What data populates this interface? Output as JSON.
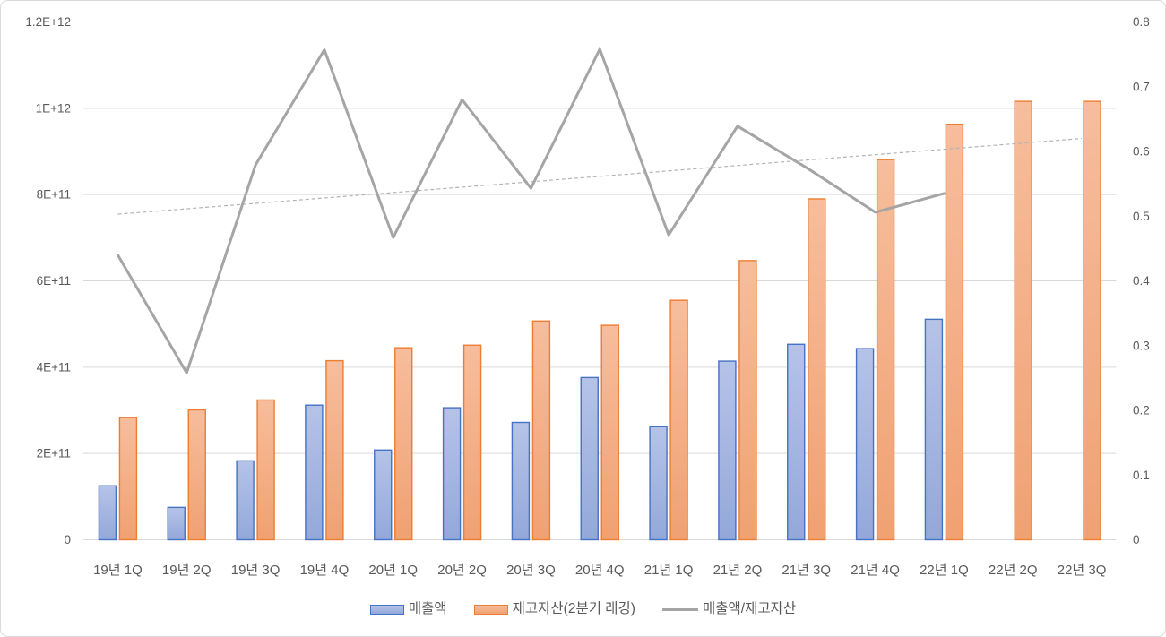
{
  "chart_data": {
    "type": "bar",
    "subtype": "dual-axis bar + line combo",
    "title": "",
    "categories": [
      "19년 1Q",
      "19년 2Q",
      "19년 3Q",
      "19년 4Q",
      "20년 1Q",
      "20년 2Q",
      "20년 3Q",
      "20년 4Q",
      "21년 1Q",
      "21년 2Q",
      "21년 3Q",
      "21년 4Q",
      "22년 1Q",
      "22년 2Q",
      "22년 3Q"
    ],
    "series": [
      {
        "name": "매출액",
        "type": "bar",
        "axis": "left",
        "values": [
          125000000000,
          75000000000,
          183000000000,
          312000000000,
          208000000000,
          306000000000,
          272000000000,
          376000000000,
          262000000000,
          414000000000,
          453000000000,
          443000000000,
          511000000000,
          null,
          null
        ]
      },
      {
        "name": "재고자산(2분기 래깅)",
        "type": "bar",
        "axis": "left",
        "values": [
          283000000000,
          301000000000,
          324000000000,
          415000000000,
          445000000000,
          451000000000,
          507000000000,
          497000000000,
          555000000000,
          647000000000,
          790000000000,
          881000000000,
          963000000000,
          1016000000000,
          1016000000000
        ]
      },
      {
        "name": "매출액/재고자산",
        "type": "line",
        "axis": "right",
        "values": [
          0.44,
          0.258,
          0.579,
          0.757,
          0.467,
          0.68,
          0.543,
          0.758,
          0.471,
          0.639,
          0.575,
          0.506,
          0.535,
          null,
          null
        ]
      }
    ],
    "trendline": {
      "applies_to": "매출액/재고자산",
      "style": "dashed",
      "start_value": 0.503,
      "end_value": 0.62
    },
    "left_axis": {
      "min": 0,
      "max": 1200000000000,
      "tick_step": 200000000000,
      "tick_labels": [
        "0",
        "2E+11",
        "4E+11",
        "6E+11",
        "8E+11",
        "1E+12",
        "1.2E+12"
      ]
    },
    "right_axis": {
      "min": 0,
      "max": 0.8,
      "tick_step": 0.1,
      "tick_labels": [
        "0",
        "0.1",
        "0.2",
        "0.3",
        "0.4",
        "0.5",
        "0.6",
        "0.7",
        "0.8"
      ]
    },
    "grid": true,
    "legend_position": "bottom",
    "colors": {
      "blue_border": "#4472C4",
      "blue_fill_top": "#b5c3e8",
      "blue_fill_bottom": "#93a8da",
      "orange_border": "#ED7D31",
      "orange_fill_top": "#f7bd9c",
      "orange_fill_bottom": "#f0a172",
      "ratio_line": "#A5A5A5",
      "trendline": "#b3b3b3",
      "gridline": "#D9D9D9",
      "axis_text": "#595959",
      "chart_border": "#D9D9D9"
    }
  },
  "legend": {
    "items": [
      {
        "label": "매출액",
        "swatch": "bar-blue"
      },
      {
        "label": "재고자산(2분기 래깅)",
        "swatch": "bar-orange"
      },
      {
        "label": "매출액/재고자산",
        "swatch": "line-gray"
      }
    ]
  }
}
